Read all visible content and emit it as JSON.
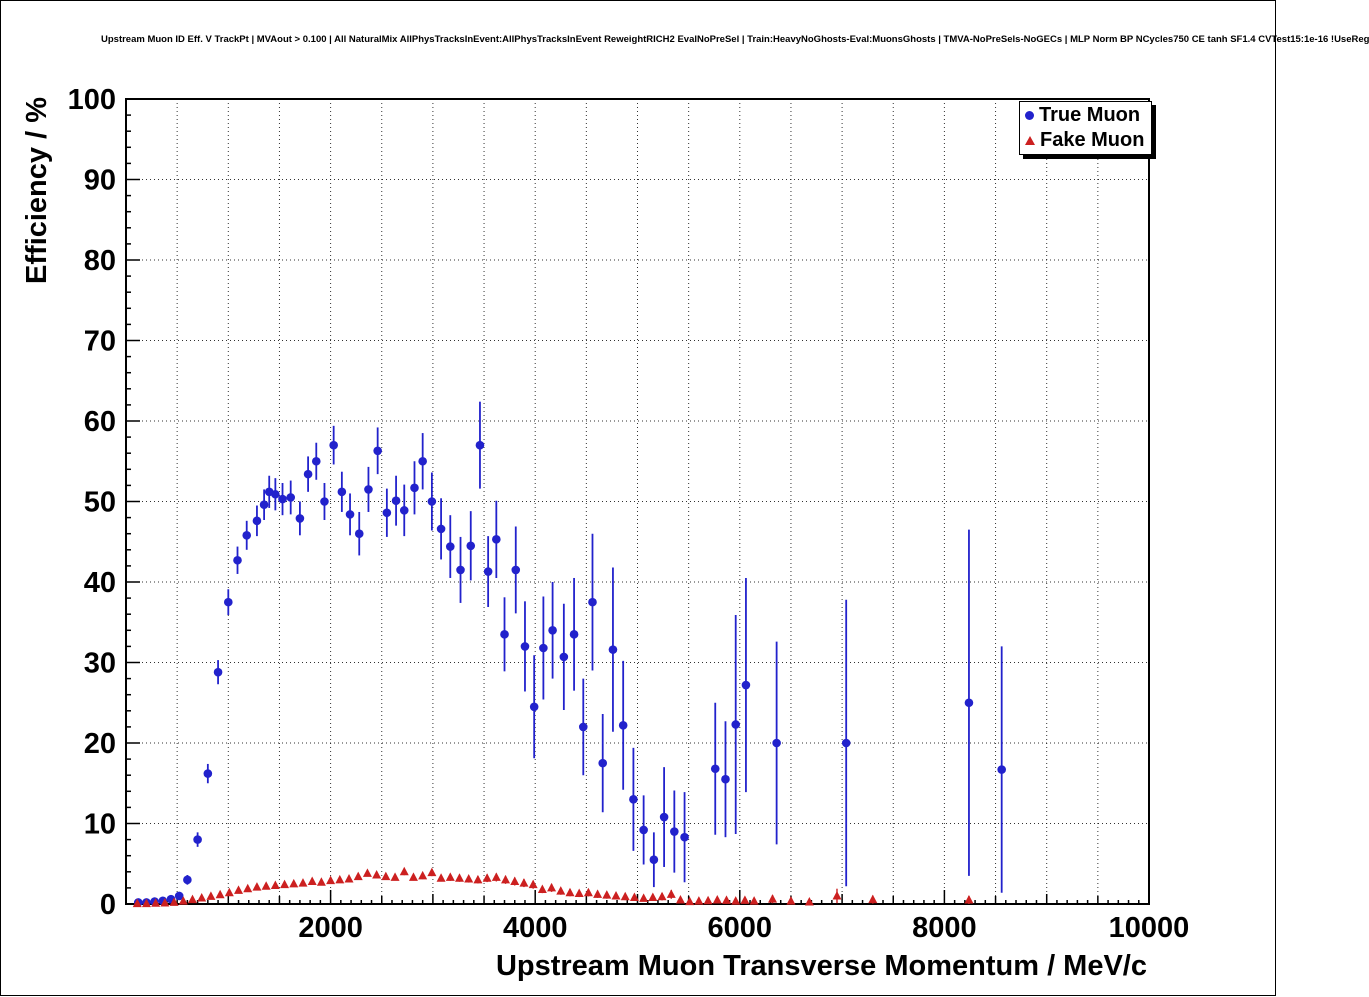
{
  "header": {
    "title": "Upstream Muon ID Eff. V TrackPt | MVAout > 0.100 | All NaturalMix AllPhysTracksInEvent:AllPhysTracksInEvent ReweightRICH2 EvalNoPreSel | Train:HeavyNoGhosts-Eval:MuonsGhosts | TMVA-NoPreSels-NoGECs | MLP Norm BP NCycles750 CE tanh SF1.4 CVTest15:1e-16 !UseReg"
  },
  "legend": {
    "items": [
      {
        "label": "True Muon",
        "marker": "circle",
        "color": "#2222cc"
      },
      {
        "label": "Fake Muon",
        "marker": "triangle",
        "color": "#cc2020"
      }
    ]
  },
  "chart_data": {
    "type": "scatter",
    "title": "Upstream Muon ID Eff. V TrackPt | MVAout > 0.100",
    "xlabel": "Upstream Muon Transverse Momentum / MeV/c",
    "ylabel": "Efficiency / %",
    "xlim": [
      0,
      10000
    ],
    "ylim": [
      0,
      100
    ],
    "grid_on": true,
    "legend_position": "top-right",
    "xticks": {
      "minor": 100,
      "mid": 500,
      "semi": 1000,
      "major": 2000,
      "labels": [
        "2000",
        "4000",
        "6000",
        "8000",
        "10000"
      ]
    },
    "yticks": {
      "minor": 2,
      "major": 10,
      "labels": [
        "0",
        "10",
        "20",
        "30",
        "40",
        "50",
        "60",
        "70",
        "80",
        "90",
        "100"
      ]
    },
    "series": [
      {
        "name": "True Muon",
        "marker": "circle",
        "color": "#2222cc",
        "marker_size": 4.3,
        "line_width": 1.8,
        "points": [
          [
            120,
            0.2,
            0.2
          ],
          [
            200,
            0.2,
            0.2
          ],
          [
            280,
            0.3,
            0.2
          ],
          [
            360,
            0.4,
            0.25
          ],
          [
            440,
            0.6,
            0.3
          ],
          [
            520,
            1.0,
            0.4
          ],
          [
            600,
            3.0,
            0.6
          ],
          [
            700,
            8.0,
            0.9
          ],
          [
            800,
            16.2,
            1.2
          ],
          [
            900,
            28.8,
            1.5
          ],
          [
            1000,
            37.5,
            1.6
          ],
          [
            1090,
            42.7,
            1.7
          ],
          [
            1180,
            45.8,
            1.8
          ],
          [
            1280,
            47.6,
            1.9
          ],
          [
            1350,
            49.6,
            1.9
          ],
          [
            1400,
            51.2,
            2.0
          ],
          [
            1460,
            50.9,
            2.0
          ],
          [
            1530,
            50.3,
            2.0
          ],
          [
            1610,
            50.5,
            2.1
          ],
          [
            1700,
            47.9,
            2.1
          ],
          [
            1780,
            53.4,
            2.2
          ],
          [
            1860,
            55.0,
            2.3
          ],
          [
            1940,
            50.0,
            2.3
          ],
          [
            2030,
            57.0,
            2.4
          ],
          [
            2110,
            51.2,
            2.5
          ],
          [
            2190,
            48.4,
            2.6
          ],
          [
            2280,
            46.0,
            2.7
          ],
          [
            2370,
            51.5,
            2.8
          ],
          [
            2460,
            56.3,
            2.9
          ],
          [
            2550,
            48.6,
            3.0
          ],
          [
            2640,
            50.1,
            3.1
          ],
          [
            2720,
            48.9,
            3.2
          ],
          [
            2820,
            51.7,
            3.3
          ],
          [
            2900,
            55.0,
            3.5
          ],
          [
            2990,
            50.0,
            3.6
          ],
          [
            3080,
            46.6,
            3.8
          ],
          [
            3170,
            44.4,
            3.9
          ],
          [
            3270,
            41.5,
            4.1
          ],
          [
            3370,
            44.5,
            4.3
          ],
          [
            3460,
            57.0,
            5.4
          ],
          [
            3540,
            41.3,
            4.4
          ],
          [
            3620,
            45.3,
            4.8
          ],
          [
            3700,
            33.5,
            4.6
          ],
          [
            3810,
            41.5,
            5.4
          ],
          [
            3900,
            32.0,
            5.6
          ],
          [
            3990,
            24.5,
            6.4
          ],
          [
            4080,
            31.8,
            6.4
          ],
          [
            4170,
            34.0,
            6.0
          ],
          [
            4280,
            30.7,
            6.6
          ],
          [
            4380,
            33.5,
            7.0
          ],
          [
            4470,
            22.0,
            6.0
          ],
          [
            4560,
            37.5,
            8.5
          ],
          [
            4660,
            17.5,
            6.1
          ],
          [
            4760,
            31.6,
            10.2
          ],
          [
            4860,
            22.2,
            8.0
          ],
          [
            4960,
            13.0,
            6.4
          ],
          [
            5060,
            9.2,
            4.3
          ],
          [
            5160,
            5.5,
            3.4
          ],
          [
            5260,
            10.8,
            6.2
          ],
          [
            5360,
            9.0,
            5.1
          ],
          [
            5460,
            8.3,
            5.6
          ],
          [
            5760,
            16.8,
            8.2
          ],
          [
            5860,
            15.5,
            7.2
          ],
          [
            5960,
            22.3,
            13.6
          ],
          [
            6060,
            27.2,
            13.3
          ],
          [
            6360,
            20.0,
            12.6
          ],
          [
            7040,
            20.0,
            17.8
          ],
          [
            8240,
            25.0,
            21.5
          ],
          [
            8560,
            16.7,
            15.3
          ]
        ]
      },
      {
        "name": "Fake Muon",
        "marker": "triangle",
        "color": "#cc2020",
        "marker_size": 4.5,
        "line_width": 1.4,
        "points": [
          [
            110,
            0.05,
            0.05
          ],
          [
            200,
            0.05,
            0.05
          ],
          [
            290,
            0.1,
            0.06
          ],
          [
            380,
            0.12,
            0.07
          ],
          [
            470,
            0.2,
            0.08
          ],
          [
            560,
            0.35,
            0.1
          ],
          [
            650,
            0.55,
            0.12
          ],
          [
            740,
            0.75,
            0.14
          ],
          [
            830,
            0.95,
            0.16
          ],
          [
            920,
            1.15,
            0.17
          ],
          [
            1010,
            1.4,
            0.19
          ],
          [
            1100,
            1.7,
            0.2
          ],
          [
            1190,
            1.9,
            0.22
          ],
          [
            1280,
            2.1,
            0.23
          ],
          [
            1370,
            2.2,
            0.24
          ],
          [
            1460,
            2.3,
            0.25
          ],
          [
            1550,
            2.4,
            0.26
          ],
          [
            1640,
            2.5,
            0.27
          ],
          [
            1730,
            2.6,
            0.28
          ],
          [
            1820,
            2.8,
            0.3
          ],
          [
            1910,
            2.7,
            0.3
          ],
          [
            2000,
            2.9,
            0.31
          ],
          [
            2090,
            3.0,
            0.32
          ],
          [
            2180,
            3.1,
            0.33
          ],
          [
            2270,
            3.4,
            0.35
          ],
          [
            2360,
            3.8,
            0.37
          ],
          [
            2450,
            3.6,
            0.37
          ],
          [
            2540,
            3.4,
            0.37
          ],
          [
            2630,
            3.3,
            0.37
          ],
          [
            2720,
            4.0,
            0.42
          ],
          [
            2810,
            3.3,
            0.39
          ],
          [
            2900,
            3.5,
            0.41
          ],
          [
            2990,
            3.9,
            0.44
          ],
          [
            3080,
            3.2,
            0.41
          ],
          [
            3170,
            3.3,
            0.43
          ],
          [
            3260,
            3.2,
            0.44
          ],
          [
            3350,
            3.1,
            0.44
          ],
          [
            3440,
            3.0,
            0.45
          ],
          [
            3530,
            3.2,
            0.48
          ],
          [
            3620,
            3.3,
            0.5
          ],
          [
            3710,
            3.0,
            0.5
          ],
          [
            3800,
            2.8,
            0.5
          ],
          [
            3890,
            2.6,
            0.5
          ],
          [
            3980,
            2.4,
            0.5
          ],
          [
            4070,
            1.8,
            0.45
          ],
          [
            4160,
            2.0,
            0.5
          ],
          [
            4250,
            1.6,
            0.45
          ],
          [
            4340,
            1.4,
            0.44
          ],
          [
            4430,
            1.3,
            0.44
          ],
          [
            4520,
            1.4,
            0.46
          ],
          [
            4610,
            1.2,
            0.44
          ],
          [
            4700,
            1.1,
            0.44
          ],
          [
            4790,
            1.0,
            0.43
          ],
          [
            4880,
            0.9,
            0.42
          ],
          [
            4970,
            0.8,
            0.4
          ],
          [
            5060,
            0.7,
            0.38
          ],
          [
            5150,
            0.8,
            0.42
          ],
          [
            5240,
            0.9,
            0.46
          ],
          [
            5330,
            1.2,
            0.55
          ],
          [
            5420,
            0.5,
            0.35
          ],
          [
            5510,
            0.3,
            0.3
          ],
          [
            5600,
            0.35,
            0.32
          ],
          [
            5690,
            0.4,
            0.35
          ],
          [
            5780,
            0.5,
            0.4
          ],
          [
            5870,
            0.45,
            0.4
          ],
          [
            5960,
            0.35,
            0.35
          ],
          [
            6050,
            0.45,
            0.4
          ],
          [
            6140,
            0.35,
            0.35
          ],
          [
            6320,
            0.6,
            0.5
          ],
          [
            6500,
            0.35,
            0.35
          ],
          [
            6680,
            0.25,
            0.25
          ],
          [
            6950,
            1.0,
            0.9
          ],
          [
            7300,
            0.55,
            0.5
          ],
          [
            8240,
            0.5,
            0.5
          ]
        ]
      }
    ]
  }
}
